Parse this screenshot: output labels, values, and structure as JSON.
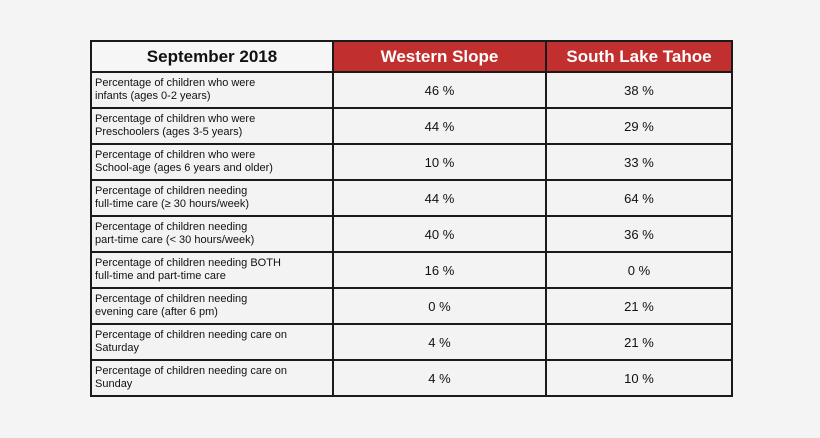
{
  "header": {
    "title": "September 2018",
    "col1": "Western Slope",
    "col2": "South Lake Tahoe"
  },
  "colors": {
    "header_accent": "#c1302e"
  },
  "rows": [
    {
      "label": "Percentage of children who were\ninfants (ages 0-2 years)",
      "western": "46 %",
      "tahoe": "38 %"
    },
    {
      "label": "Percentage of children who were\nPreschoolers (ages 3-5 years)",
      "western": "44 %",
      "tahoe": "29 %"
    },
    {
      "label": "Percentage of children who were\nSchool-age (ages 6 years and older)",
      "western": "10 %",
      "tahoe": "33 %"
    },
    {
      "label": "Percentage of children needing\nfull-time care (≥ 30 hours/week)",
      "western": "44 %",
      "tahoe": "64 %"
    },
    {
      "label": "Percentage of children needing\npart-time care (< 30 hours/week)",
      "western": "40 %",
      "tahoe": "36 %"
    },
    {
      "label": "Percentage of children needing BOTH\nfull-time and part-time care",
      "western": "16 %",
      "tahoe": "0 %"
    },
    {
      "label": "Percentage of children needing\nevening care (after 6 pm)",
      "western": "0 %",
      "tahoe": "21 %"
    },
    {
      "label": "Percentage of children needing care on\nSaturday",
      "western": "4 %",
      "tahoe": "21 %"
    },
    {
      "label": "Percentage of children needing care on\nSunday",
      "western": "4 %",
      "tahoe": "10 %"
    }
  ]
}
